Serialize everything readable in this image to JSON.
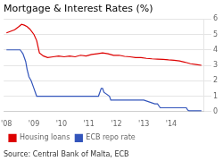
{
  "chart_data": {
    "type": "line",
    "title": "Mortgage & Interest Rates (%)",
    "annotations": [
      "Source: Central Bank of Malta, ECB"
    ],
    "xlim": [
      2007.9,
      2015.2
    ],
    "xticks": [
      {
        "value": 2008,
        "label": "'08"
      },
      {
        "value": 2009,
        "label": "'09"
      },
      {
        "value": 2010,
        "label": "'10"
      },
      {
        "value": 2011,
        "label": "'11"
      },
      {
        "value": 2012,
        "label": "'12"
      },
      {
        "value": 2013,
        "label": "'13"
      },
      {
        "value": 2014,
        "label": "'14"
      }
    ],
    "ylim": [
      0,
      6
    ],
    "yticks": [
      0,
      1,
      2,
      3,
      4,
      5,
      6
    ],
    "grid": true,
    "legend": "bottom",
    "series": [
      {
        "name": "Housing loans",
        "color": "#dd0000",
        "x": [
          2008.0,
          2008.15,
          2008.3,
          2008.45,
          2008.55,
          2008.65,
          2008.75,
          2008.85,
          2009.0,
          2009.1,
          2009.2,
          2009.35,
          2009.5,
          2009.7,
          2009.9,
          2010.1,
          2010.3,
          2010.5,
          2010.7,
          2010.9,
          2011.1,
          2011.3,
          2011.5,
          2011.7,
          2011.9,
          2012.1,
          2012.3,
          2012.5,
          2012.7,
          2012.9,
          2013.1,
          2013.3,
          2013.5,
          2013.7,
          2013.9,
          2014.1,
          2014.3,
          2014.5,
          2014.7,
          2014.9,
          2015.1
        ],
        "values": [
          5.1,
          5.2,
          5.3,
          5.5,
          5.65,
          5.6,
          5.5,
          5.35,
          5.0,
          4.6,
          3.8,
          3.6,
          3.5,
          3.55,
          3.6,
          3.55,
          3.6,
          3.55,
          3.65,
          3.6,
          3.7,
          3.75,
          3.8,
          3.75,
          3.65,
          3.65,
          3.58,
          3.55,
          3.5,
          3.5,
          3.45,
          3.42,
          3.4,
          3.38,
          3.35,
          3.33,
          3.28,
          3.2,
          3.1,
          3.05,
          3.0
        ]
      },
      {
        "name": "ECB repo rate",
        "color": "#3355bb",
        "x": [
          2008.0,
          2008.5,
          2008.6,
          2008.7,
          2008.75,
          2008.82,
          2008.9,
          2009.0,
          2009.05,
          2009.1,
          2009.2,
          2009.3,
          2009.35,
          2009.4,
          2009.5,
          2010.0,
          2010.5,
          2011.0,
          2011.35,
          2011.4,
          2011.45,
          2011.5,
          2011.55,
          2011.75,
          2011.8,
          2011.85,
          2011.9,
          2012.0,
          2012.05,
          2012.1,
          2012.5,
          2012.7,
          2012.75,
          2012.8,
          2013.0,
          2013.4,
          2013.45,
          2013.5,
          2013.6,
          2014.0,
          2014.55,
          2014.6,
          2014.65,
          2014.7,
          2015.1
        ],
        "values": [
          4.0,
          4.0,
          3.75,
          3.25,
          2.75,
          2.25,
          2.0,
          1.5,
          1.25,
          1.0,
          1.0,
          1.0,
          1.0,
          1.0,
          1.0,
          1.0,
          1.0,
          1.0,
          1.0,
          1.25,
          1.5,
          1.5,
          1.25,
          1.0,
          0.75,
          0.75,
          0.75,
          0.75,
          0.75,
          0.75,
          0.75,
          0.75,
          0.75,
          0.75,
          0.75,
          0.5,
          0.5,
          0.5,
          0.25,
          0.25,
          0.25,
          0.1,
          0.05,
          0.05,
          0.05
        ]
      }
    ]
  }
}
